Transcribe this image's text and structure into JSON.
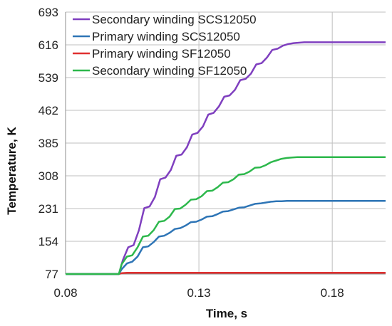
{
  "chart_data": {
    "type": "line",
    "title": "",
    "xlabel": "Time, s",
    "ylabel": "Temperature, K",
    "xlim": [
      0.08,
      0.2
    ],
    "ylim": [
      77,
      693
    ],
    "x_ticks": [
      "0.08",
      "0.13",
      "0.18"
    ],
    "x_tick_values": [
      0.08,
      0.13,
      0.18
    ],
    "y_ticks": [
      "77",
      "154",
      "231",
      "308",
      "385",
      "462",
      "539",
      "616",
      "693"
    ],
    "y_tick_values": [
      77,
      154,
      231,
      308,
      385,
      462,
      539,
      616,
      693
    ],
    "grid": true,
    "legend_position": "top-left",
    "series": [
      {
        "name": "Secondary winding SCS12050",
        "color": "#7f3fbf",
        "x": [
          0.08,
          0.1,
          0.1015,
          0.1035,
          0.1055,
          0.1075,
          0.1095,
          0.1115,
          0.1135,
          0.1155,
          0.1175,
          0.1195,
          0.1215,
          0.1235,
          0.1255,
          0.1275,
          0.1295,
          0.1315,
          0.1335,
          0.1355,
          0.1375,
          0.1395,
          0.1415,
          0.1435,
          0.1455,
          0.1475,
          0.1495,
          0.1515,
          0.1535,
          0.1555,
          0.1575,
          0.1595,
          0.1615,
          0.1635,
          0.1655,
          0.1675,
          0.1695,
          0.1715,
          0.1735,
          0.1755,
          0.1775,
          0.1795,
          0.1815,
          0.1835,
          0.1855,
          0.1875,
          0.1895,
          0.1915,
          0.1935,
          0.1955,
          0.1975,
          0.1995,
          0.2
        ],
        "values": [
          77,
          77,
          110,
          140,
          145,
          180,
          232,
          236,
          258,
          300,
          304,
          322,
          355,
          358,
          375,
          405,
          409,
          424,
          452,
          456,
          471,
          494,
          497,
          510,
          533,
          536,
          548,
          570,
          573,
          586,
          604,
          607,
          614,
          618,
          620,
          621,
          622,
          622,
          622,
          622,
          622,
          622,
          622,
          622,
          622,
          622,
          622,
          622,
          622,
          622,
          622,
          622,
          622
        ]
      },
      {
        "name": "Primary winding SCS12050",
        "color": "#2e75b6",
        "x": [
          0.08,
          0.1,
          0.101,
          0.103,
          0.105,
          0.107,
          0.109,
          0.111,
          0.113,
          0.115,
          0.117,
          0.119,
          0.121,
          0.123,
          0.125,
          0.127,
          0.129,
          0.131,
          0.133,
          0.135,
          0.137,
          0.139,
          0.141,
          0.143,
          0.145,
          0.147,
          0.149,
          0.151,
          0.153,
          0.155,
          0.157,
          0.159,
          0.161,
          0.163,
          0.165,
          0.167,
          0.169,
          0.171,
          0.173,
          0.175,
          0.177,
          0.179,
          0.181,
          0.183,
          0.185,
          0.187,
          0.189,
          0.191,
          0.193,
          0.195,
          0.197,
          0.199,
          0.2
        ],
        "values": [
          77,
          77,
          88,
          102,
          106,
          118,
          140,
          142,
          152,
          165,
          167,
          174,
          183,
          185,
          191,
          199,
          200,
          205,
          212,
          213,
          218,
          224,
          225,
          229,
          233,
          234,
          238,
          242,
          243,
          245,
          247,
          248,
          248,
          249,
          249,
          249,
          249,
          249,
          249,
          249,
          249,
          249,
          249,
          249,
          249,
          249,
          249,
          249,
          249,
          249,
          249,
          249,
          249
        ]
      },
      {
        "name": "Primary winding SF12050",
        "color": "#e03030",
        "x": [
          0.08,
          0.1,
          0.101,
          0.103,
          0.2
        ],
        "values": [
          77,
          77,
          79,
          80,
          80
        ]
      },
      {
        "name": "Secondary winding SF12050",
        "color": "#2db84c",
        "x": [
          0.08,
          0.1,
          0.101,
          0.103,
          0.105,
          0.107,
          0.109,
          0.111,
          0.113,
          0.115,
          0.117,
          0.119,
          0.121,
          0.123,
          0.125,
          0.127,
          0.129,
          0.131,
          0.133,
          0.135,
          0.137,
          0.139,
          0.141,
          0.143,
          0.145,
          0.147,
          0.149,
          0.151,
          0.153,
          0.155,
          0.157,
          0.159,
          0.161,
          0.163,
          0.165,
          0.167,
          0.169,
          0.171,
          0.173,
          0.175,
          0.177,
          0.179,
          0.181,
          0.183,
          0.185,
          0.187,
          0.189,
          0.191,
          0.193,
          0.195,
          0.197,
          0.199,
          0.2
        ],
        "values": [
          77,
          77,
          100,
          118,
          121,
          140,
          165,
          167,
          180,
          200,
          202,
          212,
          230,
          231,
          240,
          252,
          253,
          260,
          272,
          273,
          281,
          292,
          293,
          300,
          311,
          312,
          318,
          327,
          328,
          333,
          340,
          344,
          348,
          350,
          351,
          352,
          352,
          352,
          352,
          352,
          352,
          352,
          352,
          352,
          352,
          352,
          352,
          352,
          352,
          352,
          352,
          352,
          352
        ]
      }
    ]
  }
}
